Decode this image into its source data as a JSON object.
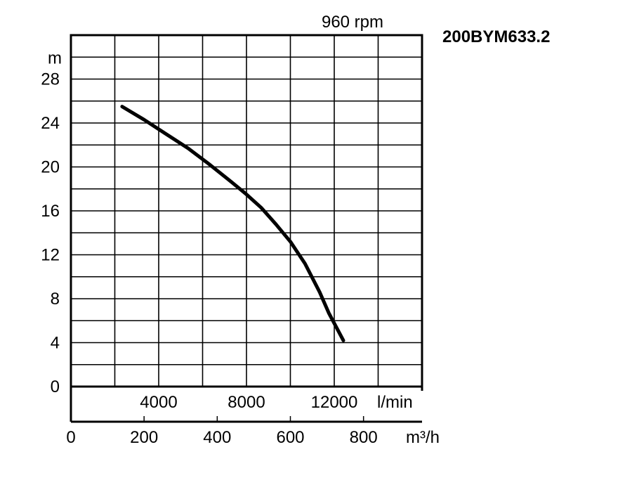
{
  "chart_data": {
    "type": "line",
    "title": "200BYM633.2",
    "subtitle": "960 rpm",
    "ylabel": "m",
    "xlabel": "m³/h",
    "xlabel_secondary": "l/min",
    "ylim": [
      0,
      32
    ],
    "xlim": [
      0,
      960
    ],
    "y_ticks": [
      0,
      4,
      8,
      12,
      16,
      20,
      24,
      28
    ],
    "y_unit_tick": "m",
    "x_ticks": [
      0,
      200,
      400,
      600,
      800
    ],
    "x_unit_tick": "m³/h",
    "x_ticks_secondary": [
      4000,
      8000,
      12000
    ],
    "x_unit_tick_secondary": "l/min",
    "grid": true,
    "series": [
      {
        "x": [
          140,
          200,
          260,
          320,
          380,
          440,
          480,
          520,
          560,
          600,
          640,
          680,
          705,
          745
        ],
        "y": [
          25.5,
          24.3,
          23.0,
          21.7,
          20.2,
          18.6,
          17.5,
          16.3,
          14.8,
          13.2,
          11.2,
          8.6,
          6.7,
          4.2
        ]
      }
    ]
  }
}
